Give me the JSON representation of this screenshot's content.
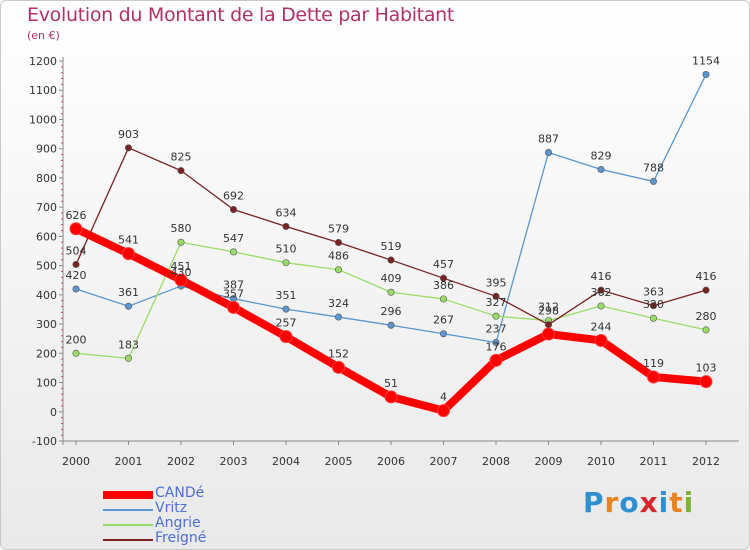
{
  "title": "Evolution du Montant de la Dette par Habitant",
  "subtitle": "(en €)",
  "logo": {
    "text": "Proxiti",
    "letters": [
      "P",
      "r",
      "o",
      "x",
      "i",
      "t",
      "i"
    ],
    "colors": [
      "#2f8fd0",
      "#e8831f",
      "#2f8fd0",
      "#d7262e",
      "#2f8fd0",
      "#e8831f",
      "#7fb23a"
    ]
  },
  "chart_data": {
    "type": "line",
    "x": [
      2000,
      2001,
      2002,
      2003,
      2004,
      2005,
      2006,
      2007,
      2008,
      2009,
      2010,
      2011,
      2012
    ],
    "ylim": [
      -100,
      1200
    ],
    "yticks": [
      -100,
      0,
      100,
      200,
      300,
      400,
      500,
      600,
      700,
      800,
      900,
      1000,
      1100,
      1200
    ],
    "grid": false,
    "legend": "bottom-left",
    "series": [
      {
        "name": "CANDé",
        "color": "#ff0000",
        "width": 8,
        "marker": 6,
        "values": [
          626,
          541,
          451,
          357,
          257,
          152,
          51,
          4,
          176,
          266,
          244,
          119,
          103
        ],
        "labels": [
          "626",
          "541",
          "451",
          "357",
          "257",
          "152",
          "51",
          "4",
          "176",
          "",
          "244",
          "119",
          "103"
        ]
      },
      {
        "name": "Vritz",
        "color": "#5a96cf",
        "width": 1.3,
        "marker": 3.2,
        "values": [
          420,
          361,
          430,
          387,
          351,
          324,
          296,
          267,
          237,
          887,
          829,
          788,
          1154
        ],
        "labels": [
          "420",
          "361",
          "430",
          "387",
          "351",
          "324",
          "296",
          "267",
          "237",
          "887",
          "829",
          "788",
          "1154"
        ]
      },
      {
        "name": "Angrie",
        "color": "#99dd66",
        "width": 1.3,
        "marker": 3.2,
        "values": [
          200,
          183,
          580,
          547,
          510,
          486,
          409,
          386,
          327,
          312,
          362,
          320,
          280
        ],
        "labels": [
          "200",
          "183",
          "580",
          "547",
          "510",
          "486",
          "409",
          "386",
          "327",
          "312",
          "362",
          "320",
          "280"
        ]
      },
      {
        "name": "Freigné",
        "color": "#7a2121",
        "width": 1.3,
        "marker": 3.2,
        "values": [
          504,
          903,
          825,
          692,
          634,
          579,
          519,
          457,
          395,
          298,
          416,
          363,
          416
        ],
        "labels": [
          "504",
          "903",
          "825",
          "692",
          "634",
          "579",
          "519",
          "457",
          "395",
          "298",
          "416",
          "363",
          "416"
        ]
      }
    ]
  }
}
